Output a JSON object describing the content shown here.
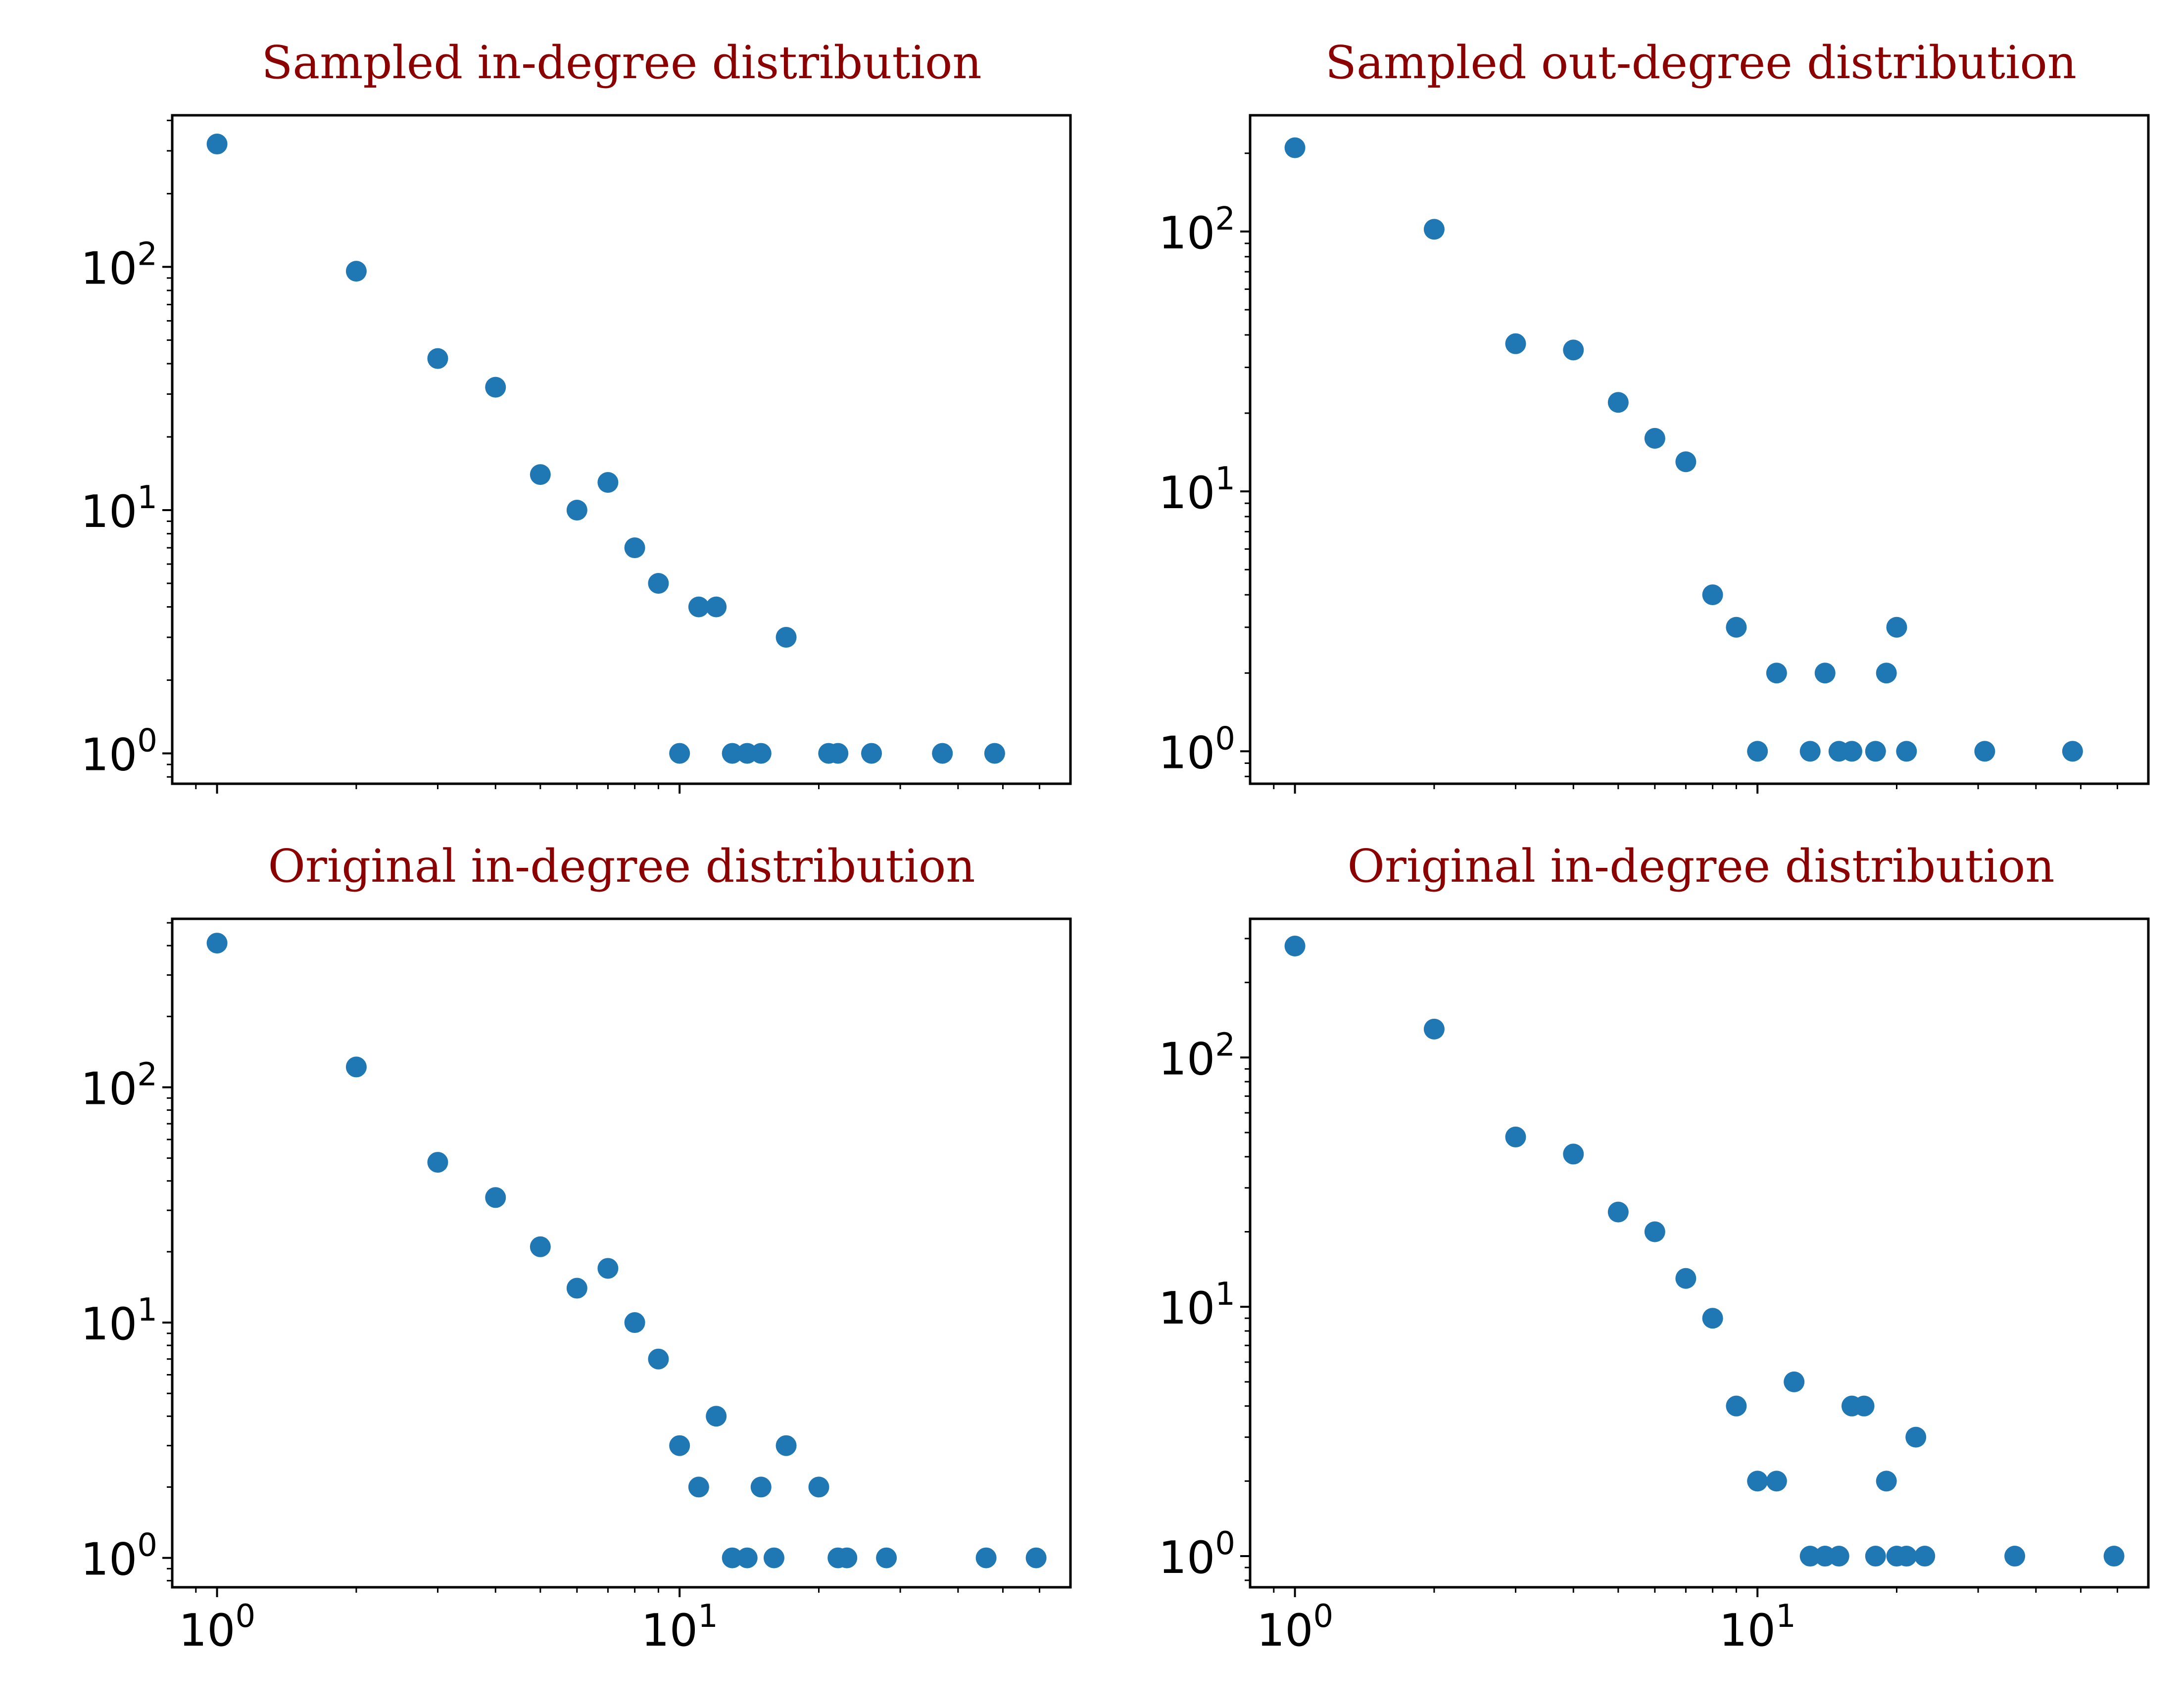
{
  "figure": {
    "marker_color": "#1f77b4",
    "title_color": "#8b0000"
  },
  "chart_data": [
    {
      "type": "scatter",
      "title": "Sampled in-degree distribution",
      "xscale": "log",
      "yscale": "log",
      "xlim": [
        0.8,
        70
      ],
      "ylim": [
        0.75,
        420
      ],
      "xticks": [
        "10^0",
        "10^1"
      ],
      "yticks": [
        "10^0",
        "10^1",
        "10^2"
      ],
      "show_xtick_labels": false,
      "x": [
        1,
        2,
        3,
        4,
        5,
        6,
        7,
        8,
        9,
        10,
        11,
        12,
        13,
        14,
        15,
        17,
        21,
        22,
        26,
        37,
        48
      ],
      "y": [
        320,
        96,
        42,
        32,
        14,
        10,
        13,
        7,
        5,
        1,
        4,
        4,
        1,
        1,
        1,
        3,
        1,
        1,
        1,
        1,
        1
      ]
    },
    {
      "type": "scatter",
      "title": "Sampled out-degree distribution",
      "xscale": "log",
      "yscale": "log",
      "xlim": [
        0.8,
        70
      ],
      "ylim": [
        0.75,
        280
      ],
      "xticks": [
        "10^0",
        "10^1"
      ],
      "yticks": [
        "10^0",
        "10^1",
        "10^2"
      ],
      "show_xtick_labels": false,
      "x": [
        1,
        2,
        3,
        4,
        5,
        6,
        7,
        8,
        9,
        10,
        11,
        13,
        14,
        15,
        16,
        18,
        19,
        20,
        21,
        31,
        48
      ],
      "y": [
        210,
        102,
        37,
        35,
        22,
        16,
        13,
        4,
        3,
        1,
        2,
        1,
        2,
        1,
        1,
        1,
        2,
        3,
        1,
        1,
        1
      ]
    },
    {
      "type": "scatter",
      "title": "Original in-degree distribution",
      "xscale": "log",
      "yscale": "log",
      "xlim": [
        0.8,
        70
      ],
      "ylim": [
        0.75,
        520
      ],
      "xticks": [
        "10^0",
        "10^1"
      ],
      "yticks": [
        "10^0",
        "10^1",
        "10^2"
      ],
      "show_xtick_labels": true,
      "x": [
        1,
        2,
        3,
        4,
        5,
        6,
        7,
        8,
        9,
        10,
        11,
        12,
        13,
        14,
        15,
        16,
        17,
        20,
        22,
        23,
        28,
        46,
        59
      ],
      "y": [
        410,
        122,
        48,
        34,
        21,
        14,
        17,
        10,
        7,
        3,
        2,
        4,
        1,
        1,
        2,
        1,
        3,
        2,
        1,
        1,
        1,
        1,
        1
      ]
    },
    {
      "type": "scatter",
      "title": "Original in-degree distribution",
      "xscale": "log",
      "yscale": "log",
      "xlim": [
        0.8,
        70
      ],
      "ylim": [
        0.75,
        360
      ],
      "xticks": [
        "10^0",
        "10^1"
      ],
      "yticks": [
        "10^0",
        "10^1",
        "10^2"
      ],
      "show_xtick_labels": true,
      "x": [
        1,
        2,
        3,
        4,
        5,
        6,
        7,
        8,
        9,
        10,
        11,
        12,
        13,
        14,
        15,
        16,
        17,
        18,
        19,
        20,
        21,
        22,
        23,
        36,
        59
      ],
      "y": [
        280,
        130,
        48,
        41,
        24,
        20,
        13,
        9,
        4,
        2,
        2,
        5,
        1,
        1,
        1,
        4,
        4,
        1,
        2,
        1,
        1,
        3,
        1,
        1,
        1
      ]
    }
  ]
}
